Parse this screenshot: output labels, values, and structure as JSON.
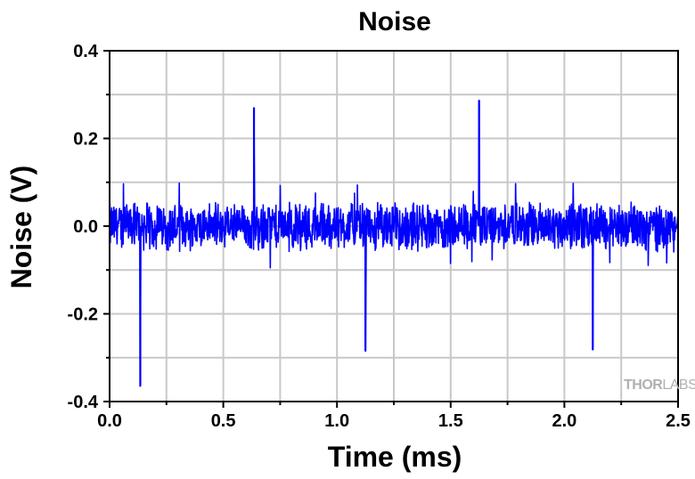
{
  "chart_data": {
    "type": "line",
    "title": "Noise",
    "xlabel": "Time (ms)",
    "ylabel": "Noise (V)",
    "xlim": [
      0.0,
      2.5
    ],
    "ylim": [
      -0.4,
      0.4
    ],
    "x_ticks": [
      0.0,
      0.5,
      1.0,
      1.5,
      2.0,
      2.5
    ],
    "x_tick_labels": [
      "0.0",
      "0.5",
      "1.0",
      "1.5",
      "2.0",
      "2.5"
    ],
    "y_ticks": [
      -0.4,
      -0.2,
      0.0,
      0.2,
      0.4
    ],
    "y_tick_labels": [
      "-0.4",
      "-0.2",
      "0.0",
      "0.2",
      "0.4"
    ],
    "grid": true,
    "x_minor_step": 0.25,
    "y_minor_step": 0.1,
    "line_color": "#0000ff",
    "noise": {
      "baseline": 0.0,
      "typical_peak_to_peak": 0.12,
      "max_excursion": 0.1,
      "sample_count": 1600
    },
    "spikes": [
      {
        "x": 0.135,
        "y": -0.365
      },
      {
        "x": 0.635,
        "y": 0.27
      },
      {
        "x": 1.125,
        "y": -0.285
      },
      {
        "x": 1.625,
        "y": 0.287
      },
      {
        "x": 2.125,
        "y": -0.282
      }
    ],
    "series": [
      {
        "values_description": ""
      }
    ]
  },
  "watermark": {
    "part1": "THOR",
    "part2": "LABS"
  }
}
